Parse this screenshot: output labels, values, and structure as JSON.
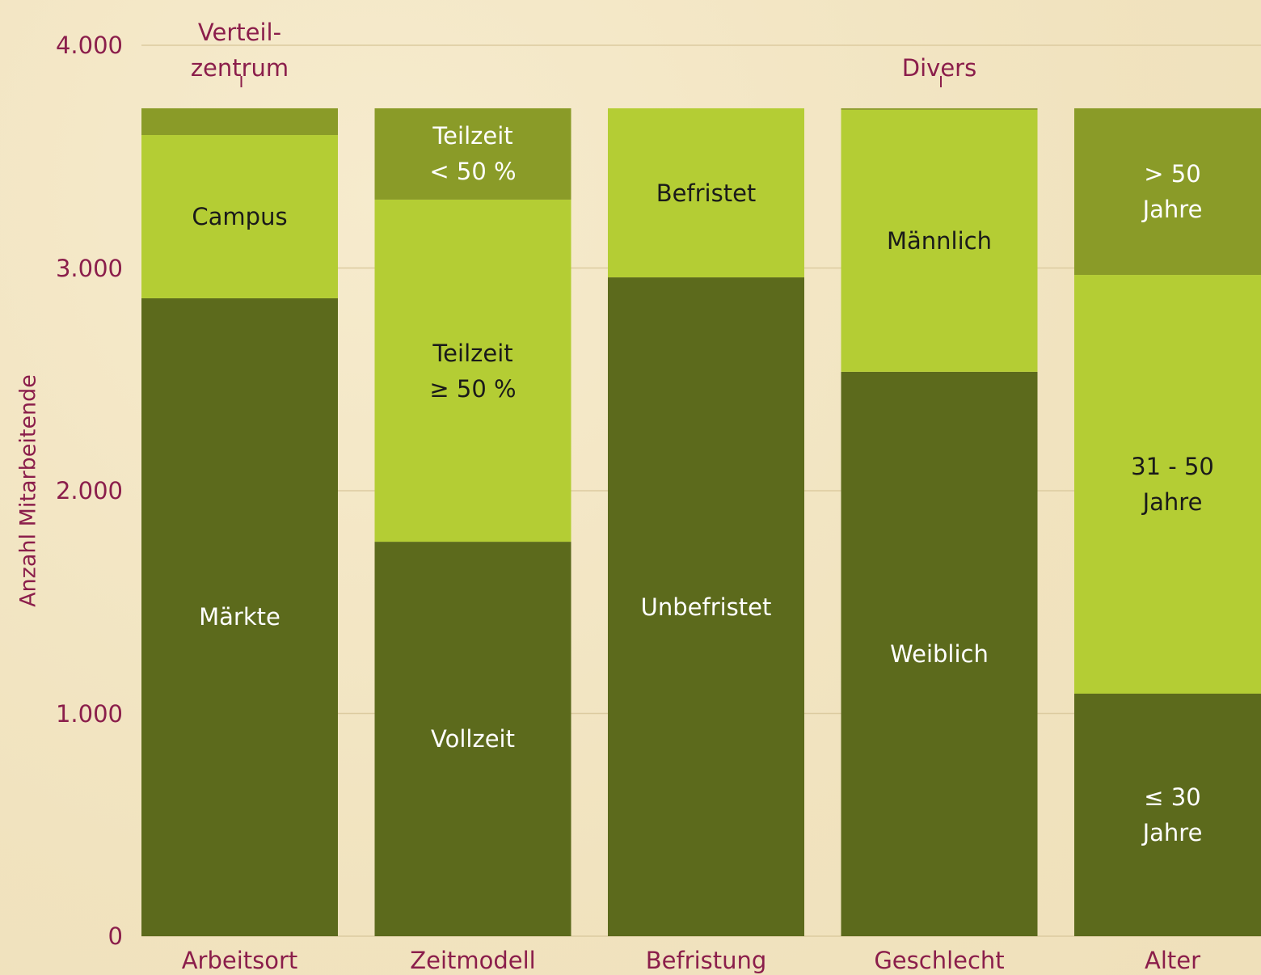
{
  "chart_data": {
    "type": "stacked_bar",
    "y_label": "Anzahl Mitarbeitende",
    "ylim": [
      0,
      4000
    ],
    "yticks": [
      0,
      {
        "value": 1000,
        "label": "1.000"
      },
      {
        "value": 2000,
        "label": "2.000"
      },
      {
        "value": 3000,
        "label": "3.000"
      },
      {
        "value": 4000,
        "label": "4.000"
      }
    ],
    "grid": true,
    "level_colors": [
      "#5c6a1c",
      "#b4cd34",
      "#8a9b28"
    ],
    "label_colors": [
      "#ffffff",
      "#1a1a1a",
      "#ffffff"
    ],
    "outside_label_color": "#8b1e4b",
    "stacks": [
      {
        "category": "Arbeitsort",
        "segments": [
          {
            "label": "Märkte",
            "value": 2864
          },
          {
            "label": "Campus",
            "value": 733
          },
          {
            "label": "Verteil-\nzentrum",
            "value": 120,
            "label_outside": true
          }
        ]
      },
      {
        "category": "Zeitmodell",
        "segments": [
          {
            "label": "Vollzeit",
            "value": 1771
          },
          {
            "label": "Teilzeit\n≥ 50 %",
            "value": 1536
          },
          {
            "label": "Teilzeit\n< 50 %",
            "value": 410
          }
        ]
      },
      {
        "category": "Befristung",
        "segments": [
          {
            "label": "Unbefristet",
            "value": 2958
          },
          {
            "label": "Befristet",
            "value": 759
          }
        ]
      },
      {
        "category": "Geschlecht",
        "segments": [
          {
            "label": "Weiblich",
            "value": 2534
          },
          {
            "label": "Männlich",
            "value": 1176
          },
          {
            "label": "Divers",
            "value": 7,
            "label_outside": true
          }
        ]
      },
      {
        "category": "Alter",
        "segments": [
          {
            "label": "≤ 30\nJahre",
            "value": 1089
          },
          {
            "label": "31 - 50\nJahre",
            "value": 1880
          },
          {
            "label": "> 50\nJahre",
            "value": 748
          }
        ]
      }
    ]
  }
}
